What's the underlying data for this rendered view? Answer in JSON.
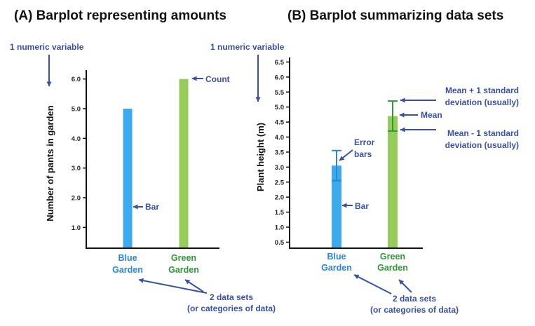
{
  "colors": {
    "blue_bar": "#3fa9ee",
    "green_bar": "#97cb5b",
    "green_error": "#2e9a36",
    "annotation": "#3a50a1",
    "blue_label": "#2c86d6",
    "green_label": "#2e9a36",
    "axis": "#111111"
  },
  "panelA": {
    "title": "(A) Barplot representing amounts",
    "top_note": "1 numeric variable",
    "bar_note": "Bar",
    "count_note": "Count",
    "datasets_note_line1": "2 data sets",
    "datasets_note_line2": "(or categories of data)"
  },
  "panelB": {
    "title": "(B) Barplot summarizing data sets",
    "top_note": "1 numeric variable",
    "error_note_line1": "Error",
    "error_note_line2": "bars",
    "bar_note": "Bar",
    "upper_note_line1": "Mean + 1 standard",
    "upper_note_line2": "deviation (usually)",
    "mean_note": "Mean",
    "lower_note_line1": "Mean - 1 standard",
    "lower_note_line2": "deviation (usually)",
    "datasets_note_line1": "2 data sets",
    "datasets_note_line2": "(or categories of data)"
  },
  "chart_data": [
    {
      "type": "bar",
      "title": "(A) Barplot representing amounts",
      "ylabel": "Number of pants in garden",
      "xlabel": "",
      "categories": [
        "Blue Garden",
        "Green Garden"
      ],
      "category_lines": [
        [
          "Blue",
          "Garden"
        ],
        [
          "Green",
          "Garden"
        ]
      ],
      "values": [
        5.0,
        6.0
      ],
      "ylim": [
        0.3,
        6.3
      ],
      "yticks": [
        1.0,
        2.0,
        3.0,
        4.0,
        5.0,
        6.0
      ],
      "ytick_labels": [
        "1.0",
        "2.0",
        "3.0",
        "4.0",
        "5.0",
        "6.0"
      ],
      "grid": false
    },
    {
      "type": "bar",
      "title": "(B) Barplot summarizing data sets",
      "ylabel": "Plant height (m)",
      "xlabel": "",
      "categories": [
        "Blue Garden",
        "Green Garden"
      ],
      "category_lines": [
        [
          "Blue",
          "Garden"
        ],
        [
          "Green",
          "Garden"
        ]
      ],
      "values": [
        3.05,
        4.7
      ],
      "error_low": [
        2.55,
        4.2
      ],
      "error_high": [
        3.55,
        5.2
      ],
      "ylim": [
        0.3,
        6.65
      ],
      "yticks": [
        0.5,
        1.0,
        1.5,
        2.0,
        2.5,
        3.0,
        3.5,
        4.0,
        4.5,
        5.0,
        5.5,
        6.0,
        6.5
      ],
      "ytick_labels": [
        "0.5",
        "1.0",
        "1.5",
        "2.0",
        "2.5",
        "3.0",
        "3.5",
        "4.0",
        "4.5",
        "5.0",
        "5.5",
        "6.0",
        "6.5"
      ],
      "grid": false
    }
  ]
}
